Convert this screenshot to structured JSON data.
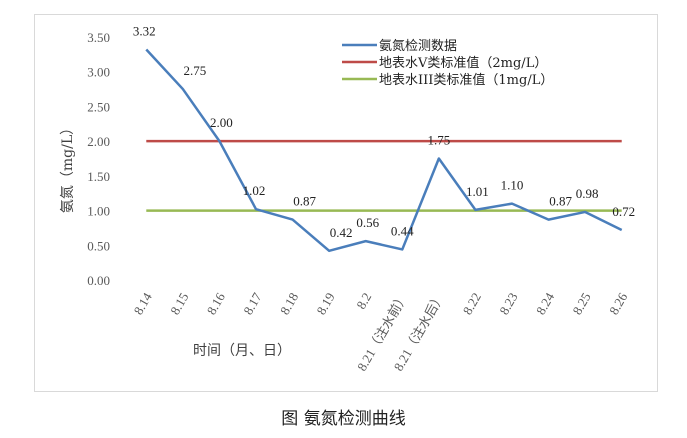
{
  "caption": "图 氨氮检测曲线",
  "chart_data": {
    "type": "line",
    "ylabel": "氨氮（mg/L）",
    "xlabel": "时间（月、日）",
    "ylim": [
      0,
      3.5
    ],
    "yticks": [
      "0.00",
      "0.50",
      "1.00",
      "1.50",
      "2.00",
      "2.50",
      "3.00",
      "3.50"
    ],
    "categories": [
      "8.14",
      "8.15",
      "8.16",
      "8.17",
      "8.18",
      "8.19",
      "8.2",
      "8.21（注水前）",
      "8.21（注水后）",
      "8.22",
      "8.23",
      "8.24",
      "8.25",
      "8.26"
    ],
    "series": [
      {
        "name": "氨氮检测数据",
        "color": "#4a7ebb",
        "values": [
          3.32,
          2.75,
          2.0,
          1.02,
          0.87,
          0.42,
          0.56,
          0.44,
          1.75,
          1.01,
          1.1,
          0.87,
          0.98,
          0.72
        ],
        "labels": [
          "3.32",
          "2.75",
          "2.00",
          "1.02",
          "0.87",
          "0.42",
          "0.56",
          "0.44",
          "1.75",
          "1.01",
          "1.10",
          "0.87",
          "0.98",
          "0.72"
        ]
      },
      {
        "name": "地表水V类标准值（2mg/L）",
        "color": "#be4b48",
        "values": [
          2,
          2,
          2,
          2,
          2,
          2,
          2,
          2,
          2,
          2,
          2,
          2,
          2,
          2
        ]
      },
      {
        "name": "地表水III类标准值（1mg/L）",
        "color": "#98b954",
        "values": [
          1,
          1,
          1,
          1,
          1,
          1,
          1,
          1,
          1,
          1,
          1,
          1,
          1,
          1
        ]
      }
    ],
    "legend_position": "top-right",
    "grid": false
  }
}
